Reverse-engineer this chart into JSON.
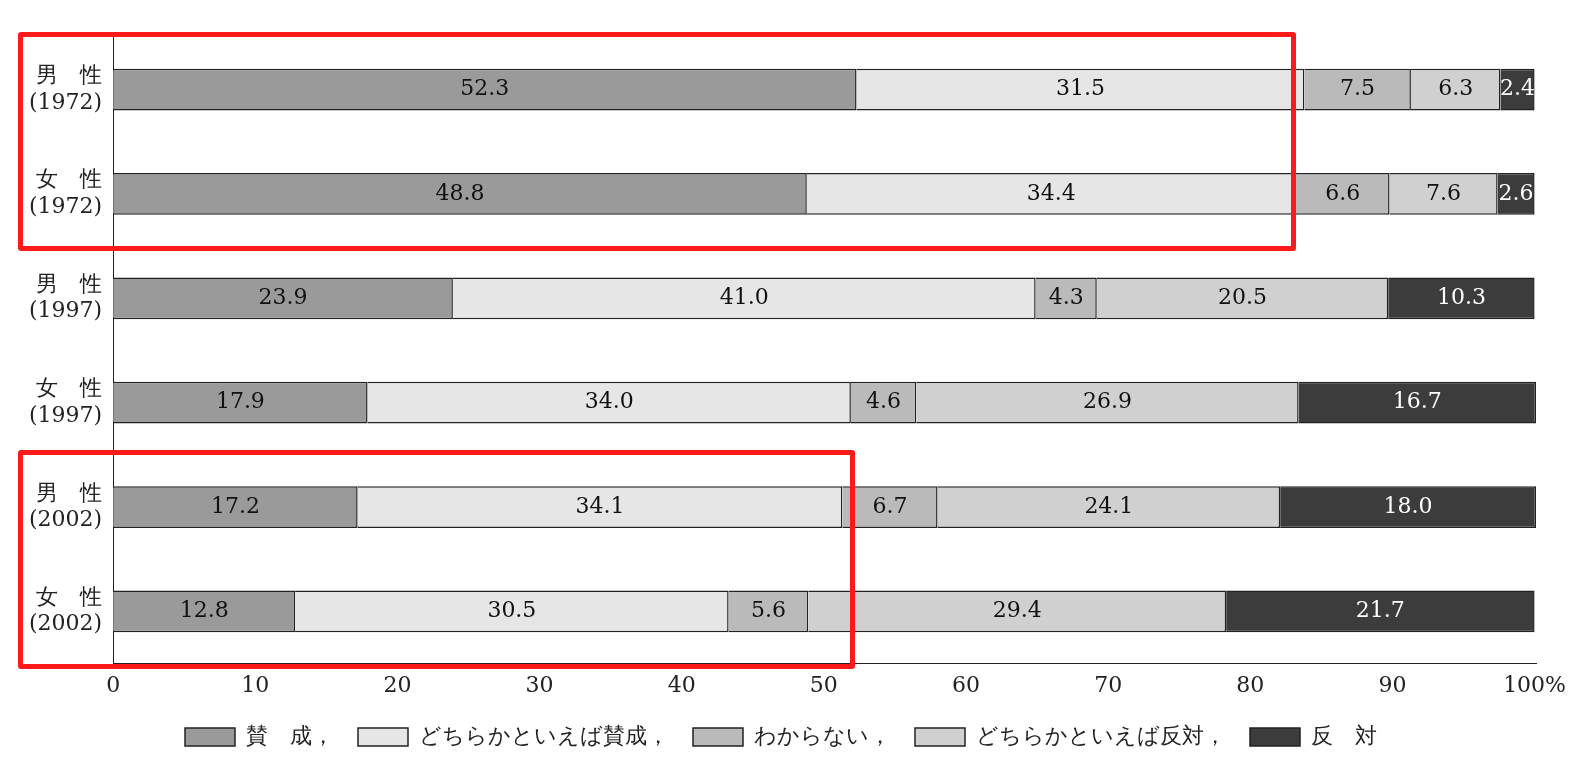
{
  "chart_data": {
    "type": "bar",
    "orientation": "horizontal",
    "stacked": true,
    "categories": [
      "男　性\n(1972)",
      "女　性\n(1972)",
      "男　性\n(1997)",
      "女　性\n(1997)",
      "男　性\n(2002)",
      "女　性\n(2002)"
    ],
    "series": [
      {
        "name": "賛　成，",
        "color": "#9a9a9a",
        "values": [
          52.3,
          48.8,
          23.9,
          17.9,
          17.2,
          12.8
        ],
        "value_labels": [
          "52.3",
          "48.8",
          "23.9",
          "17.9",
          "17.2",
          "12.8"
        ]
      },
      {
        "name": "どちらかといえば賛成，",
        "color": "#e6e6e6",
        "values": [
          31.5,
          34.4,
          41.0,
          34.0,
          34.1,
          30.5
        ],
        "value_labels": [
          "31.5",
          "34.4",
          "41.0",
          "34.0",
          "34.1",
          "30.5"
        ]
      },
      {
        "name": "わからない，",
        "color": "#bababa",
        "values": [
          7.5,
          6.6,
          4.3,
          4.6,
          6.7,
          5.6
        ],
        "value_labels": [
          "7.5",
          "6.6",
          "4.3",
          "4.6",
          "6.7",
          "5.6"
        ]
      },
      {
        "name": "どちらかといえば反対，",
        "color": "#d0d0d0",
        "values": [
          6.3,
          7.6,
          20.5,
          26.9,
          24.1,
          29.4
        ],
        "value_labels": [
          "6.3",
          "7.6",
          "20.5",
          "26.9",
          "24.1",
          "29.4"
        ]
      },
      {
        "name": "反　対",
        "color": "#3c3c3c",
        "values": [
          2.4,
          2.6,
          10.3,
          16.7,
          18.0,
          21.7
        ],
        "value_labels": [
          "2.4",
          "2.6",
          "10.3",
          "16.7",
          "18.0",
          "21.7"
        ]
      }
    ],
    "xlim": [
      0,
      100.1
    ],
    "xticks": [
      0,
      10,
      20,
      30,
      40,
      50,
      60,
      70,
      80,
      90,
      {
        "value": 100,
        "label": "100%"
      }
    ],
    "grid": false,
    "legend": "bottom"
  }
}
